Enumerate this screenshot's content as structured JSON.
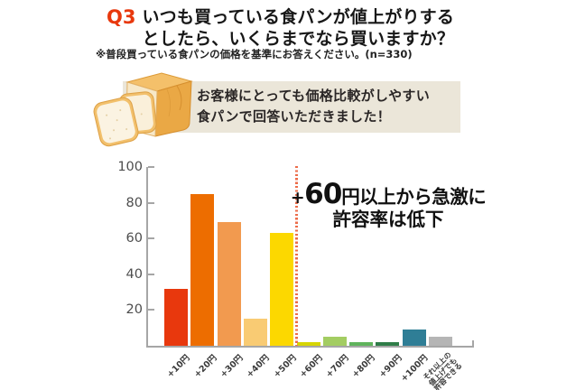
{
  "header": {
    "q_label": "Q3",
    "title_line1": "いつも買っている食パンが値上がりする",
    "title_line2": "としたら、いくらまでなら買いますか？",
    "note": "※普段買っている食パンの価格を基準にお答えください。(n=330)"
  },
  "callout": {
    "line1": "お客様にとっても価格比較がしやすい",
    "line2": "食パンで回答いただきました！",
    "bg_color": "#ebe6d9",
    "icon": "bread-loaf-with-slices"
  },
  "annotation": {
    "plus": "+",
    "big_number": "60",
    "line1_rest": "円以上から急激に",
    "line2": "許容率は低下"
  },
  "chart_data": {
    "type": "bar",
    "title": "",
    "xlabel": "",
    "ylabel": "",
    "categories": [
      "+10円",
      "+20円",
      "+30円",
      "+40円",
      "+50円",
      "+60円",
      "+70円",
      "+80円",
      "+90円",
      "+100円",
      "それ以上の値上げでも許容できる"
    ],
    "values": [
      32,
      85,
      69,
      15,
      63,
      2,
      5,
      2,
      2,
      9,
      5
    ],
    "bar_colors": [
      "#e8380d",
      "#ed6d00",
      "#f29a4f",
      "#f9cb73",
      "#fcd800",
      "#d6d500",
      "#a3cd62",
      "#5fb35c",
      "#2f7d48",
      "#2f7e96",
      "#b5b5b5"
    ],
    "last_category_lines": [
      "それ以上の",
      "値上げでも",
      "許容できる"
    ],
    "ylim": [
      0,
      100
    ],
    "yticks": [
      20,
      40,
      60,
      80,
      100
    ],
    "grid": false,
    "legend": false,
    "threshold_line": {
      "boundary_index": 5,
      "color": "#ec6d4a",
      "style": "dotted",
      "meaning": "sharp drop after +50円"
    }
  }
}
